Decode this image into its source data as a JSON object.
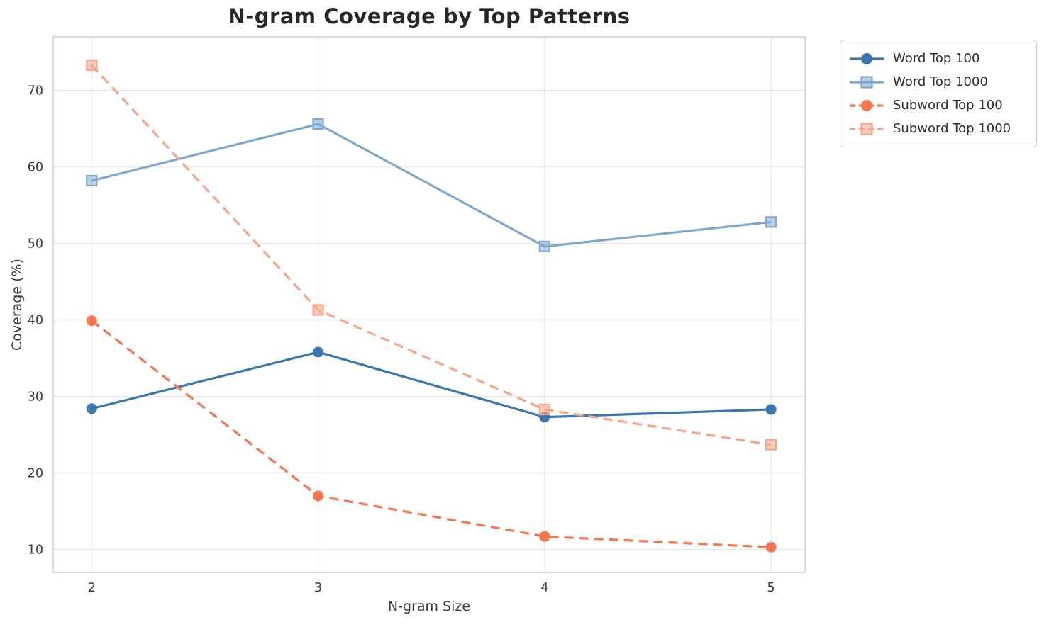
{
  "figure": {
    "title": "N-gram Coverage by Top Patterns"
  },
  "chart_data": {
    "type": "line",
    "title": "N-gram Coverage by Top Patterns",
    "xlabel": "N-gram Size",
    "ylabel": "Coverage (%)",
    "x": [
      2,
      3,
      4,
      5
    ],
    "x_ticks": [
      2,
      3,
      4,
      5
    ],
    "y_ticks": [
      10,
      20,
      30,
      40,
      50,
      60,
      70
    ],
    "xlim": [
      1.83,
      5.15
    ],
    "ylim": [
      7,
      77
    ],
    "grid": true,
    "legend_position": "outside upper right",
    "colors": {
      "grid": "#e7e7e7",
      "spine": "#cfcfcf",
      "tick_text": "#3a3a3a"
    },
    "series": [
      {
        "name": "Word Top 100",
        "values": [
          28.4,
          35.8,
          27.3,
          28.3
        ],
        "color": "#3c76af",
        "linestyle": "solid",
        "marker": "circle"
      },
      {
        "name": "Word Top 1000",
        "values": [
          58.2,
          65.6,
          49.6,
          52.8
        ],
        "color": "#7fa8cf",
        "linestyle": "solid",
        "marker": "square"
      },
      {
        "name": "Subword Top 100",
        "values": [
          39.9,
          17.0,
          11.7,
          10.3
        ],
        "color": "#f8764f",
        "linestyle": "dashed",
        "marker": "circle"
      },
      {
        "name": "Subword Top 1000",
        "values": [
          73.3,
          41.3,
          28.3,
          23.7
        ],
        "color": "#fba489",
        "linestyle": "dashed",
        "marker": "square"
      }
    ]
  }
}
